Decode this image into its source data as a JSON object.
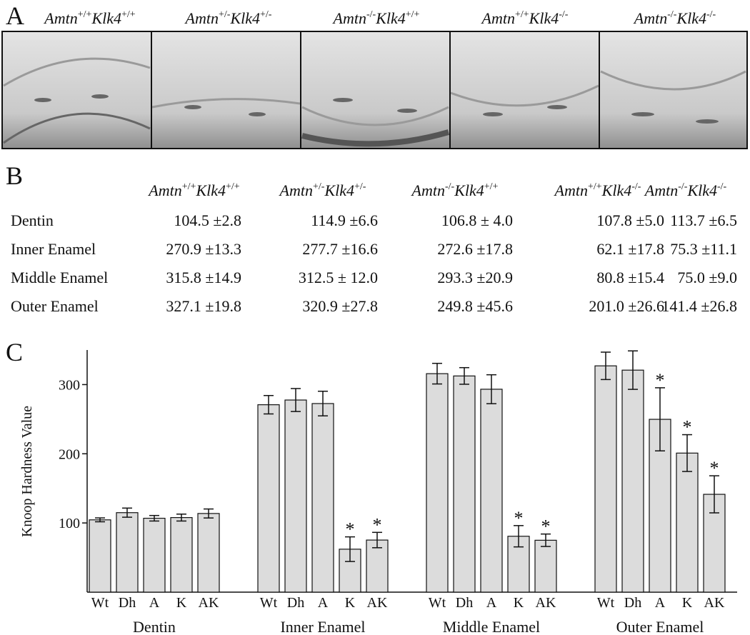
{
  "panel_labels": [
    "A",
    "B",
    "C"
  ],
  "genotypes": [
    [
      "Amtn",
      "+/+",
      "Klk4",
      "+/+"
    ],
    [
      "Amtn",
      "+/-",
      "Klk4",
      "+/-"
    ],
    [
      "Amtn",
      "-/-",
      "Klk4",
      "+/+"
    ],
    [
      "Amtn",
      "+/+",
      "Klk4",
      "-/-"
    ],
    [
      "Amtn",
      "-/-",
      "Klk4",
      "-/-"
    ]
  ],
  "table": {
    "rows": [
      {
        "label": "Dentin",
        "cells": [
          "104.5 ±2.8",
          "114.9 ±6.6",
          "106.8 ± 4.0",
          "107.8 ±5.0",
          "113.7 ±6.5"
        ]
      },
      {
        "label": "Inner Enamel",
        "cells": [
          "270.9 ±13.3",
          "277.7 ±16.6",
          "272.6 ±17.8",
          "62.1 ±17.8",
          "75.3 ±11.1"
        ]
      },
      {
        "label": "Middle Enamel",
        "cells": [
          "315.8 ±14.9",
          "312.5 ± 12.0",
          "293.3 ±20.9",
          "80.8 ±15.4",
          "75.0 ±9.0"
        ]
      },
      {
        "label": "Outer Enamel",
        "cells": [
          "327.1 ±19.8",
          "320.9 ±27.8",
          "249.8 ±45.6",
          "201.0 ±26.6",
          "141.4 ±26.8"
        ]
      }
    ]
  },
  "chart_data": {
    "type": "bar",
    "y_label": "Knoop Hardness Value",
    "categories": [
      "Wt",
      "Dh",
      "A",
      "K",
      "AK"
    ],
    "color": "#dcdcdc",
    "significance_marker": "*",
    "ylim": [
      0,
      350
    ],
    "yticks": [
      100,
      200,
      300
    ],
    "groups": [
      {
        "name": "Dentin",
        "values": [
          104.5,
          114.9,
          106.8,
          107.8,
          113.7
        ],
        "errors": [
          2.8,
          6.6,
          4.0,
          5.0,
          6.5
        ],
        "significant": [
          false,
          false,
          false,
          false,
          false
        ]
      },
      {
        "name": "Inner Enamel",
        "values": [
          270.9,
          277.7,
          272.6,
          62.1,
          75.3
        ],
        "errors": [
          13.3,
          16.6,
          17.8,
          17.8,
          11.1
        ],
        "significant": [
          false,
          false,
          false,
          true,
          true
        ]
      },
      {
        "name": "Middle Enamel",
        "values": [
          315.8,
          312.5,
          293.3,
          80.8,
          75.0
        ],
        "errors": [
          14.9,
          12.0,
          20.9,
          15.4,
          9.0
        ],
        "significant": [
          false,
          false,
          false,
          true,
          true
        ]
      },
      {
        "name": "Outer Enamel",
        "values": [
          327.1,
          320.9,
          249.8,
          201.0,
          141.4
        ],
        "errors": [
          19.8,
          27.8,
          45.6,
          26.6,
          26.8
        ],
        "significant": [
          false,
          false,
          true,
          true,
          true
        ]
      }
    ]
  }
}
